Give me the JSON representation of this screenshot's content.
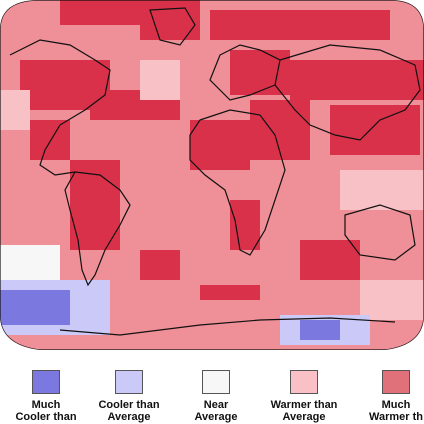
{
  "legend": {
    "items": [
      {
        "name": "legend-much-cooler",
        "label": "Much\nCooler than",
        "color": "#7b78e0"
      },
      {
        "name": "legend-cooler",
        "label": "Cooler than\nAverage",
        "color": "#cbc9f8"
      },
      {
        "name": "legend-near",
        "label": "Near\nAverage",
        "color": "#f7f7f7"
      },
      {
        "name": "legend-warmer",
        "label": "Warmer than\nAverage",
        "color": "#f9c1c5"
      },
      {
        "name": "legend-much-warmer",
        "label": "Much\nWarmer th",
        "color": "#e0717a"
      }
    ]
  },
  "map": {
    "colors": {
      "warm": "#ef8f98",
      "much_warm": "#d9314a",
      "warmer_light": "#f8c1c6",
      "near": "#f7f7f7",
      "cool": "#cbc9f8",
      "much_cool": "#7b78e0",
      "coast": "#111111"
    }
  }
}
